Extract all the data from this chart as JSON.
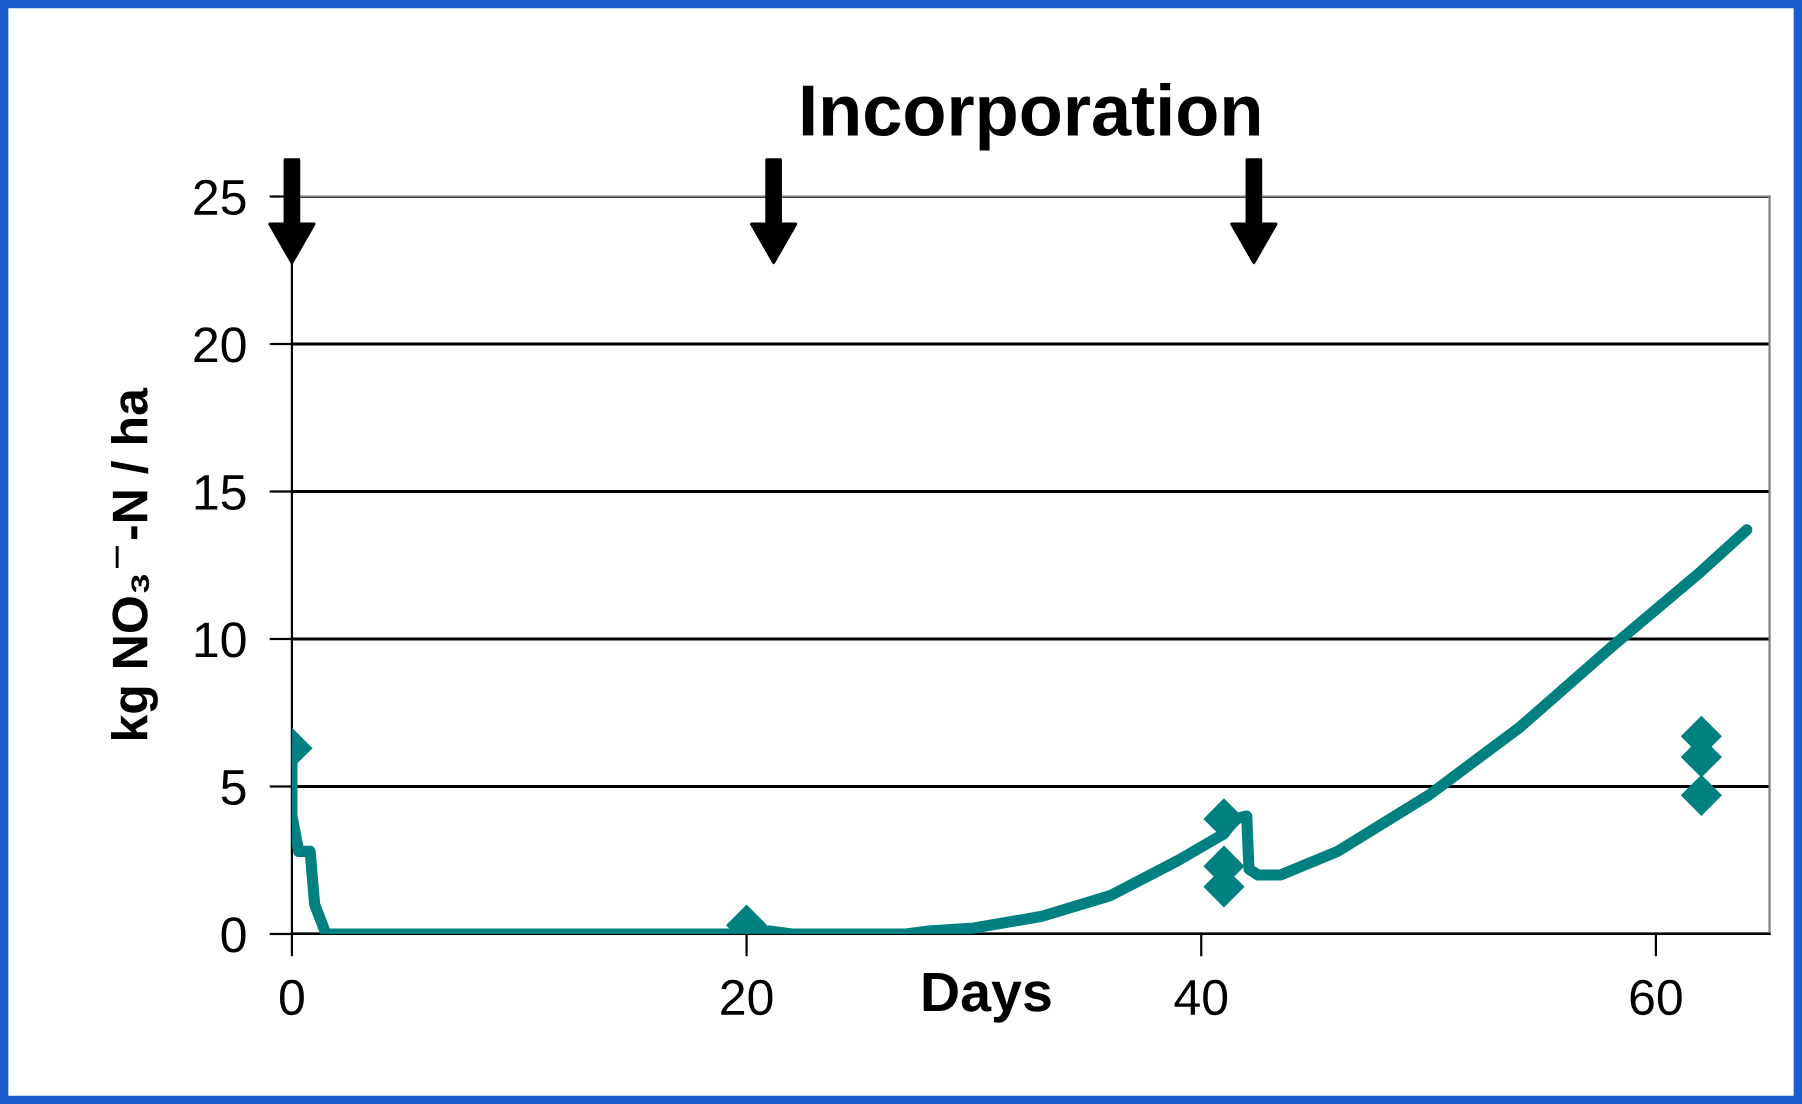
{
  "chart_data": {
    "type": "line",
    "title": "Incorporation",
    "xlabel": "Days",
    "ylabel": "kg NO₃$^{−}$-N / ha",
    "xlim": [
      0,
      65
    ],
    "xticks": [
      0,
      20,
      40,
      60
    ],
    "ylim": [
      0,
      25
    ],
    "yticks": [
      0,
      5,
      10,
      15,
      20,
      25
    ],
    "grid": "y",
    "series": [
      {
        "color": "#008080",
        "marker": "none",
        "line_style": "solid",
        "x": [
          0,
          0,
          0.3,
          0.8,
          1,
          1.5,
          20,
          21,
          22,
          27,
          28,
          30,
          33,
          36,
          39,
          41,
          41.5,
          42,
          42.1,
          42.5,
          43.5,
          46,
          50,
          54,
          58,
          62,
          64
        ],
        "values": [
          6.3,
          4,
          2.8,
          2.8,
          1,
          0,
          0,
          0.1,
          0,
          0,
          0.1,
          0.2,
          0.6,
          1.3,
          2.5,
          3.4,
          3.9,
          4.0,
          2.2,
          2.0,
          2.0,
          2.8,
          4.7,
          7.0,
          9.7,
          12.3,
          13.7
        ]
      },
      {
        "type": "scatter",
        "color": "#008080",
        "marker": "diamond",
        "x": [
          0,
          20,
          41,
          41,
          41,
          62,
          62,
          62
        ],
        "values": [
          6.3,
          0.3,
          3.9,
          2.3,
          1.6,
          6.7,
          6.0,
          4.7
        ]
      }
    ]
  }
}
